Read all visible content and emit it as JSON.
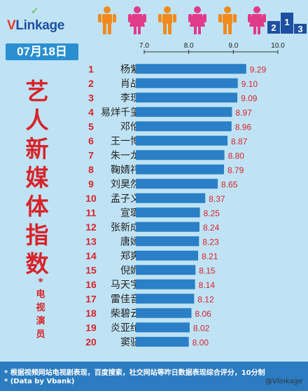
{
  "brand": {
    "logo_text_v": "V",
    "logo_text_rest": "Linkage"
  },
  "date": "07月18日",
  "side_title": [
    "艺",
    "人",
    "新",
    "媒",
    "体",
    "指",
    "数"
  ],
  "side_subtitle": {
    "mark": "*",
    "chars": [
      "电",
      "视",
      "演",
      "员"
    ]
  },
  "colors": {
    "bar": "#2a7fc6",
    "rank": "#d8232a",
    "value": "#d8232a",
    "name": "#222222",
    "background": "#bfe3f4",
    "footer": "#2b7cc0"
  },
  "chart_data": {
    "type": "bar",
    "orientation": "horizontal",
    "xlim": [
      7.0,
      10.0
    ],
    "x_ticks": [
      "7.0",
      "8.0",
      "9.0",
      "10.0"
    ],
    "ranks": [
      "1",
      "2",
      "3",
      "4",
      "5",
      "6",
      "7",
      "8",
      "9",
      "10",
      "11",
      "12",
      "13",
      "14",
      "15",
      "16",
      "17",
      "18",
      "19",
      "20"
    ],
    "categories": [
      "杨紫",
      "肖战",
      "李现",
      "易烊千玺",
      "邓伦",
      "王一博",
      "朱一龙",
      "鞠婧祎",
      "刘昊然",
      "孟子义",
      "宣璐",
      "张新成",
      "唐嫣",
      "郑爽",
      "倪妮",
      "马天宇",
      "雷佳音",
      "柴碧云",
      "炎亚纶",
      "窦骁"
    ],
    "values": [
      9.29,
      9.1,
      9.09,
      8.97,
      8.96,
      8.87,
      8.8,
      8.79,
      8.65,
      8.37,
      8.25,
      8.24,
      8.23,
      8.21,
      8.15,
      8.14,
      8.12,
      8.06,
      8.02,
      8.0
    ],
    "value_labels": [
      "9.29",
      "9.10",
      "9.09",
      "8.97",
      "8.96",
      "8.87",
      "8.80",
      "8.79",
      "8.65",
      "8.37",
      "8.25",
      "8.24",
      "8.23",
      "8.21",
      "8.15",
      "8.14",
      "8.12",
      "8.06",
      "8.02",
      "8.00"
    ]
  },
  "footer": {
    "note": "* 根据视频网站电视剧表现，百度搜索，社交网站等昨日数据表现综合评分，10分制",
    "source": "* (Data by Vbank)",
    "watermark": "@Vlinkage"
  }
}
